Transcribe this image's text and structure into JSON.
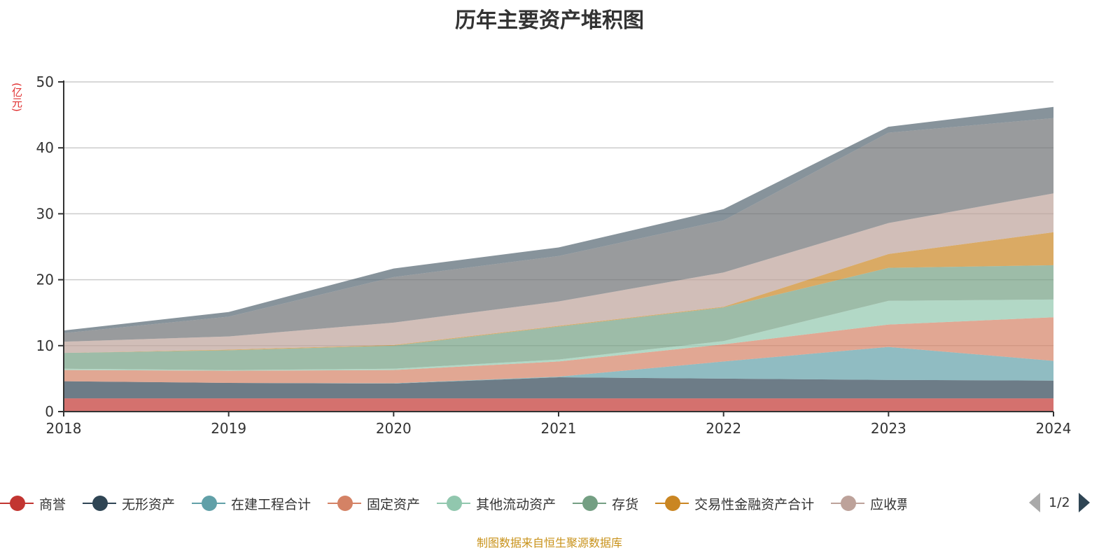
{
  "chart_data": {
    "type": "area",
    "stacked": true,
    "title": "历年主要资产堆积图",
    "ylabel": "(亿元)",
    "ylim": [
      0,
      50
    ],
    "yticks": [
      0,
      10,
      20,
      30,
      40,
      50
    ],
    "grid": true,
    "legend_position": "bottom",
    "categories": [
      "2018",
      "2019",
      "2020",
      "2021",
      "2022",
      "2023",
      "2024"
    ],
    "series": [
      {
        "name": "商誉",
        "color": "#c23531",
        "values": [
          2.0,
          2.0,
          2.0,
          2.0,
          2.0,
          2.0,
          2.0
        ]
      },
      {
        "name": "无形资产",
        "color": "#2f4554",
        "values": [
          2.6,
          2.35,
          2.25,
          3.2,
          3.0,
          2.8,
          2.7
        ]
      },
      {
        "name": "在建工程合计",
        "color": "#61a0a8",
        "values": [
          0,
          0,
          0.05,
          0.1,
          2.6,
          5.0,
          3.0
        ]
      },
      {
        "name": "固定资产",
        "color": "#d48265",
        "values": [
          1.7,
          1.85,
          2.0,
          2.3,
          2.6,
          3.4,
          6.6
        ]
      },
      {
        "name": "其他流动资产",
        "color": "#91c7ae",
        "values": [
          0.2,
          0.1,
          0.2,
          0.3,
          0.5,
          3.6,
          2.7
        ]
      },
      {
        "name": "存货",
        "color": "#749f83",
        "values": [
          2.4,
          3.0,
          3.5,
          5.0,
          5.1,
          5.0,
          5.2
        ]
      },
      {
        "name": "交易性金融资产合计",
        "color": "#ca8622",
        "values": [
          0,
          0.1,
          0.1,
          0.1,
          0.1,
          2.1,
          5.0
        ]
      },
      {
        "name": "应收票",
        "color": "#bda29a",
        "values": [
          1.7,
          2.0,
          3.4,
          3.7,
          5.2,
          4.7,
          5.9
        ]
      },
      {
        "color": "#6e7074",
        "values": [
          1.3,
          3.0,
          6.9,
          6.9,
          7.9,
          13.7,
          11.4
        ]
      },
      {
        "color": "#546570",
        "values": [
          0.4,
          0.7,
          1.3,
          1.3,
          1.7,
          0.9,
          1.7
        ]
      }
    ]
  },
  "legend": {
    "page": "1/2"
  },
  "source": "制图数据来自恒生聚源数据库"
}
